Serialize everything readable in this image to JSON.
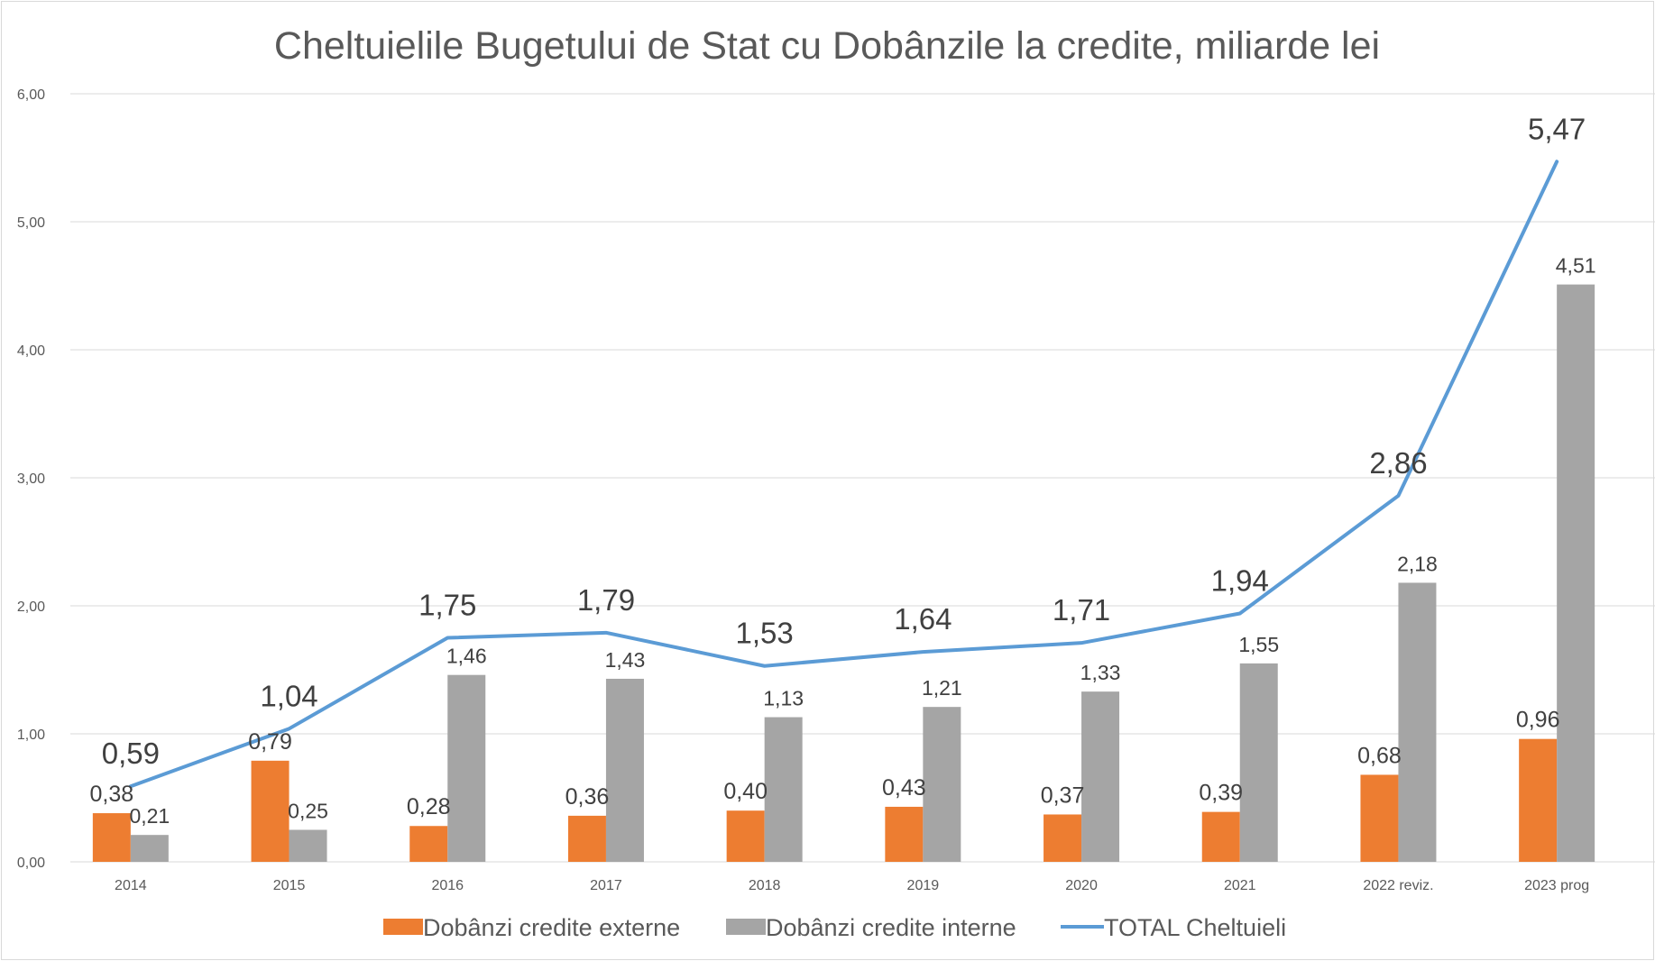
{
  "chart_data": {
    "type": "bar+line",
    "title": "Cheltuielile Bugetului de Stat cu Dobânzile la credite, miliarde lei",
    "categories": [
      "2014",
      "2015",
      "2016",
      "2017",
      "2018",
      "2019",
      "2020",
      "2021",
      "2022 reviz.",
      "2023 prog"
    ],
    "series": [
      {
        "name": "Dobânzi credite externe",
        "type": "bar",
        "color": "#ED7D31",
        "values": [
          0.38,
          0.79,
          0.28,
          0.36,
          0.4,
          0.43,
          0.37,
          0.39,
          0.68,
          0.96
        ],
        "labels": [
          "0,38",
          "0,79",
          "0,28",
          "0,36",
          "0,40",
          "0,43",
          "0,37",
          "0,39",
          "0,68",
          "0,96"
        ]
      },
      {
        "name": "Dobânzi credite interne",
        "type": "bar",
        "color": "#A5A5A5",
        "values": [
          0.21,
          0.25,
          1.46,
          1.43,
          1.13,
          1.21,
          1.33,
          1.55,
          2.18,
          4.51
        ],
        "labels": [
          "0,21",
          "0,25",
          "1,46",
          "1,43",
          "1,13",
          "1,21",
          "1,33",
          "1,55",
          "2,18",
          "4,51"
        ]
      },
      {
        "name": "TOTAL Cheltuieli",
        "type": "line",
        "color": "#5B9BD5",
        "values": [
          0.59,
          1.04,
          1.75,
          1.79,
          1.53,
          1.64,
          1.71,
          1.94,
          2.86,
          5.47
        ],
        "labels": [
          "0,59",
          "1,04",
          "1,75",
          "1,79",
          "1,53",
          "1,64",
          "1,71",
          "1,94",
          "2,86",
          "5,47"
        ]
      }
    ],
    "ylim": [
      0,
      6
    ],
    "yticks": [
      0,
      1,
      2,
      3,
      4,
      5,
      6
    ],
    "ytick_labels": [
      "0,00",
      "1,00",
      "2,00",
      "3,00",
      "4,00",
      "5,00",
      "6,00"
    ],
    "grid": true,
    "legend_position": "bottom",
    "xlabel": "",
    "ylabel": ""
  }
}
